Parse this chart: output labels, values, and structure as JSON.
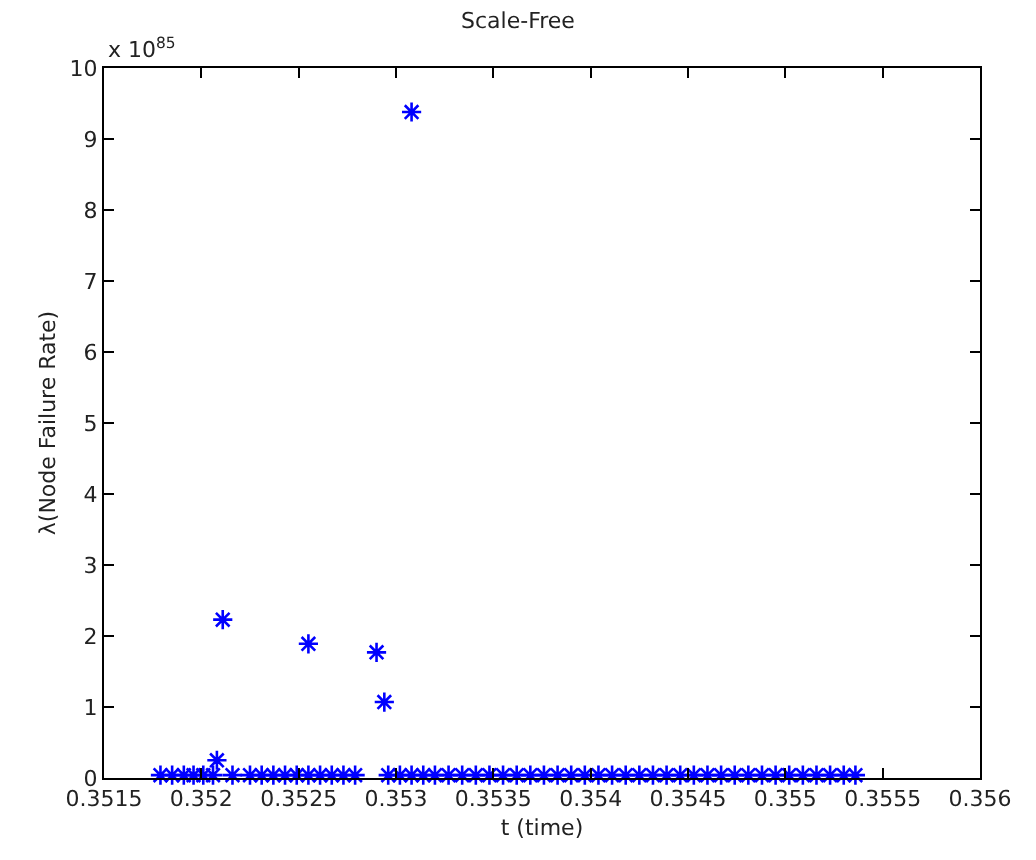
{
  "chart_data": {
    "type": "scatter",
    "title": "Scale-Free",
    "xlabel": "t (time)",
    "ylabel": "λ(Node Failure Rate)",
    "annotations": [
      "x 10$^{85}$"
    ],
    "x": [
      0.35179,
      0.35185,
      0.35191,
      0.35196,
      0.35201,
      0.35206,
      0.35208,
      0.35211,
      0.35216,
      0.35225,
      0.35231,
      0.35237,
      0.35243,
      0.35249,
      0.35255,
      0.35255,
      0.35261,
      0.35267,
      0.35273,
      0.35279,
      0.3529,
      0.35294,
      0.35296,
      0.35302,
      0.35308,
      0.35308,
      0.35314,
      0.3532,
      0.35327,
      0.35334,
      0.35341,
      0.35348,
      0.35355,
      0.35362,
      0.35369,
      0.35376,
      0.35383,
      0.3539,
      0.35397,
      0.35404,
      0.35411,
      0.35418,
      0.35425,
      0.35432,
      0.35439,
      0.35446,
      0.35453,
      0.3546,
      0.35467,
      0.35474,
      0.35481,
      0.35488,
      0.35495,
      0.35502,
      0.35509,
      0.35516,
      0.35523,
      0.3553,
      0.35536
    ],
    "series": [
      {
        "color": "#0000ff",
        "values": [
          0.04,
          0.04,
          0.04,
          0.04,
          0.04,
          0.04,
          0.25,
          2.23,
          0.04,
          0.04,
          0.04,
          0.04,
          0.04,
          0.04,
          1.89,
          0.04,
          0.04,
          0.04,
          0.04,
          0.04,
          1.77,
          1.07,
          0.04,
          0.04,
          9.38,
          0.04,
          0.04,
          0.04,
          0.04,
          0.04,
          0.04,
          0.04,
          0.04,
          0.04,
          0.04,
          0.04,
          0.04,
          0.04,
          0.04,
          0.04,
          0.04,
          0.04,
          0.04,
          0.04,
          0.04,
          0.04,
          0.04,
          0.04,
          0.04,
          0.04,
          0.04,
          0.04,
          0.04,
          0.04,
          0.04,
          0.04,
          0.04,
          0.04,
          0.04
        ]
      }
    ],
    "marker": "cross",
    "xlim": [
      0.3515,
      0.356
    ],
    "xticks": [
      0.3515,
      0.352,
      0.3525,
      0.353,
      0.3535,
      0.354,
      0.3545,
      0.355,
      0.3555,
      0.356
    ],
    "ylim": [
      0,
      10
    ],
    "yticks": [
      0,
      1,
      2,
      3,
      4,
      5,
      6,
      7,
      8,
      9,
      10
    ]
  }
}
